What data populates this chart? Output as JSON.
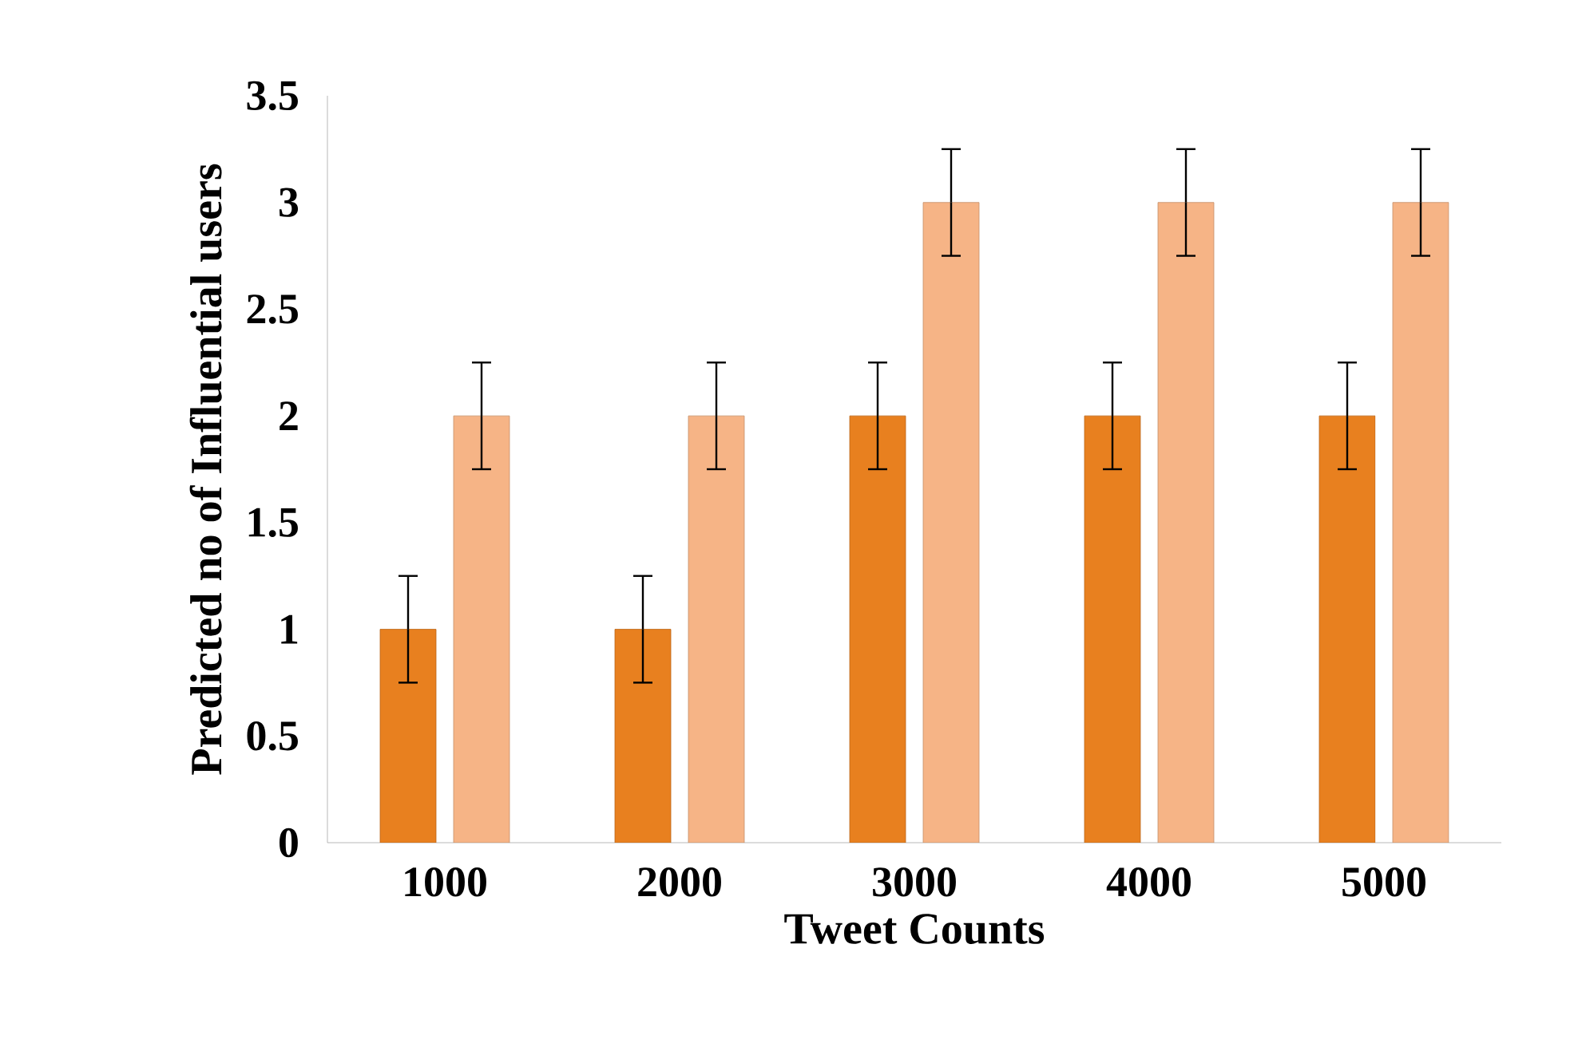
{
  "chart_data": {
    "type": "bar",
    "xlabel": "Tweet Counts",
    "ylabel": "Predicted  no of Influential users",
    "categories": [
      "1000",
      "2000",
      "3000",
      "4000",
      "5000"
    ],
    "series": [
      {
        "color": "#e8801f",
        "values": [
          1,
          1,
          2,
          2,
          2
        ],
        "errors": [
          0.25,
          0.25,
          0.25,
          0.25,
          0.25
        ]
      },
      {
        "color": "#f6b486",
        "values": [
          2,
          2,
          3,
          3,
          3
        ],
        "errors": [
          0.25,
          0.25,
          0.25,
          0.25,
          0.25
        ]
      }
    ],
    "ylim": [
      0,
      3.5
    ],
    "yticks": [
      0,
      0.5,
      1,
      1.5,
      2,
      2.5,
      3,
      3.5
    ],
    "grid": false
  }
}
